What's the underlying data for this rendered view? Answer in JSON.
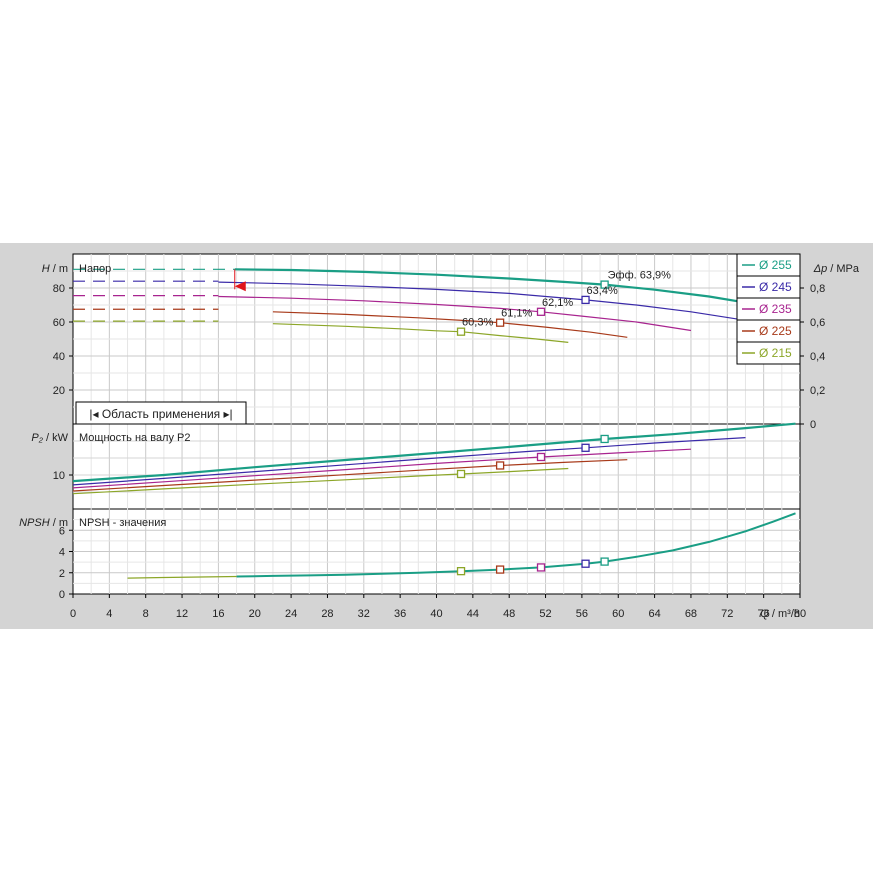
{
  "chart_data": [
    {
      "type": "line",
      "title": "Напор",
      "ylabel_left": {
        "symbol": "H",
        "unit": "m"
      },
      "ylabel_right": {
        "symbol": "Δp",
        "unit": "MPa"
      },
      "xlim": [
        0,
        80
      ],
      "ylim": [
        0,
        100
      ],
      "yticks": [
        20,
        40,
        60,
        80
      ],
      "right_ylim": [
        0,
        1.0
      ],
      "right_yticks": [
        "0",
        "0,2",
        "0,4",
        "0,6",
        "0,8"
      ],
      "grid": true,
      "legend_position": "right",
      "application_range_label": "Область применения",
      "application_range": [
        17.8,
        79.5
      ],
      "series": [
        {
          "name": "Ø 255",
          "color": "#1a9e85",
          "shutoff": 91,
          "x": [
            17.8,
            24,
            32,
            40,
            48,
            54,
            58.5,
            64,
            70,
            75,
            79.5
          ],
          "y": [
            91,
            90.6,
            89.5,
            87.8,
            85.6,
            83.6,
            82,
            79,
            75,
            70.5,
            66
          ],
          "bep": {
            "x": 58.5,
            "y": 82,
            "label": "Эфф.  63,9%"
          }
        },
        {
          "name": "Ø 245",
          "color": "#3a2aa8",
          "shutoff": 84,
          "x": [
            0,
            16,
            24,
            32,
            40,
            48,
            56.4,
            62,
            68,
            74
          ],
          "y": [
            84,
            83.5,
            82.5,
            81,
            79.2,
            76.8,
            73,
            70,
            66,
            61
          ],
          "bep": {
            "x": 56.4,
            "y": 73,
            "label": "63,4%"
          }
        },
        {
          "name": "Ø 235",
          "color": "#a8248f",
          "shutoff": 75.5,
          "x": [
            0,
            16,
            24,
            32,
            40,
            47,
            51.5,
            56,
            62,
            68
          ],
          "y": [
            75.5,
            75,
            74,
            72.5,
            70.3,
            68,
            66,
            63.5,
            60,
            55
          ],
          "bep": {
            "x": 51.5,
            "y": 66,
            "label": "62,1%"
          }
        },
        {
          "name": "Ø 225",
          "color": "#a83a1a",
          "shutoff": 67.5,
          "x": [
            0,
            14,
            22,
            30,
            38,
            44,
            47,
            52,
            57,
            61
          ],
          "y": [
            67.5,
            67,
            66,
            64.5,
            62.5,
            60.6,
            59.6,
            57,
            54,
            51
          ],
          "bep": {
            "x": 47,
            "y": 59.6,
            "label": "61,1%"
          }
        },
        {
          "name": "Ø 215",
          "color": "#8ca628",
          "shutoff": 60.5,
          "x": [
            0,
            14,
            22,
            30,
            36,
            40,
            42.7,
            47,
            51,
            54.5
          ],
          "y": [
            60.5,
            60,
            59,
            57.5,
            56,
            54.8,
            54.3,
            52,
            50,
            48
          ],
          "bep": {
            "x": 42.7,
            "y": 54.3,
            "label": "60,3%"
          }
        }
      ]
    },
    {
      "type": "line",
      "title": "Мощность на валу P2",
      "ylabel": {
        "symbol": "P₂",
        "unit": "kW"
      },
      "xlim": [
        0,
        80
      ],
      "ylim": [
        0,
        25
      ],
      "yticks": [
        10
      ],
      "grid": true,
      "series": [
        {
          "name": "Ø 255",
          "color": "#1a9e85",
          "x": [
            0,
            10,
            20,
            30,
            40,
            50,
            58.5,
            66,
            74,
            79.5
          ],
          "y": [
            8.2,
            10,
            12.3,
            14.4,
            16.5,
            18.7,
            20.6,
            22,
            23.8,
            25.1
          ],
          "bep": {
            "x": 58.5,
            "y": 20.6
          }
        },
        {
          "name": "Ø 245",
          "color": "#3a2aa8",
          "x": [
            0,
            10,
            20,
            30,
            40,
            50,
            56.4,
            64,
            74
          ],
          "y": [
            7.1,
            9,
            11,
            13,
            15,
            16.9,
            18,
            19.4,
            21
          ],
          "bep": {
            "x": 56.4,
            "y": 18
          }
        },
        {
          "name": "Ø 235",
          "color": "#a8248f",
          "x": [
            0,
            10,
            20,
            30,
            40,
            51.5,
            60,
            68
          ],
          "y": [
            6.2,
            8,
            9.8,
            11.6,
            13.4,
            15.3,
            16.5,
            17.6
          ],
          "bep": {
            "x": 51.5,
            "y": 15.3
          }
        },
        {
          "name": "Ø 225",
          "color": "#a83a1a",
          "x": [
            0,
            10,
            20,
            30,
            40,
            47,
            54,
            61
          ],
          "y": [
            5.3,
            6.9,
            8.5,
            10.1,
            11.7,
            12.8,
            13.7,
            14.5
          ],
          "bep": {
            "x": 47,
            "y": 12.8
          }
        },
        {
          "name": "Ø 215",
          "color": "#8ca628",
          "x": [
            0,
            10,
            20,
            30,
            38,
            42.7,
            48,
            54.5
          ],
          "y": [
            4.5,
            5.9,
            7.3,
            8.6,
            9.7,
            10.3,
            11,
            11.9
          ],
          "bep": {
            "x": 42.7,
            "y": 10.3
          }
        }
      ]
    },
    {
      "type": "line",
      "title": "NPSH - значения",
      "ylabel": {
        "symbol": "NPSH",
        "unit": "m"
      },
      "xlabel": {
        "symbol": "Q",
        "unit": "m³/h"
      },
      "xlim": [
        0,
        80
      ],
      "xticks": [
        0,
        4,
        8,
        12,
        16,
        20,
        24,
        28,
        32,
        36,
        40,
        44,
        48,
        52,
        56,
        60,
        64,
        68,
        72,
        76,
        80
      ],
      "ylim": [
        0,
        8
      ],
      "yticks": [
        0,
        2,
        4,
        6
      ],
      "grid": true,
      "series": [
        {
          "name": "NPSH",
          "color": "#1a9e85",
          "x": [
            6,
            10,
            14,
            18,
            22,
            26,
            30,
            34,
            38,
            42.7,
            47,
            51.5,
            56.4,
            58.5,
            62,
            66,
            70,
            74,
            77,
            79.5
          ],
          "y": [
            1.5,
            1.55,
            1.6,
            1.65,
            1.7,
            1.75,
            1.82,
            1.9,
            2,
            2.15,
            2.3,
            2.5,
            2.85,
            3.05,
            3.5,
            4.1,
            4.9,
            5.9,
            6.8,
            7.6
          ],
          "bep_points": [
            {
              "x": 42.7,
              "y": 2.15,
              "color": "#8ca628"
            },
            {
              "x": 47,
              "y": 2.3,
              "color": "#a83a1a"
            },
            {
              "x": 51.5,
              "y": 2.5,
              "color": "#a8248f"
            },
            {
              "x": 56.4,
              "y": 2.85,
              "color": "#3a2aa8"
            },
            {
              "x": 58.5,
              "y": 3.05,
              "color": "#1a9e85"
            }
          ]
        }
      ]
    }
  ]
}
